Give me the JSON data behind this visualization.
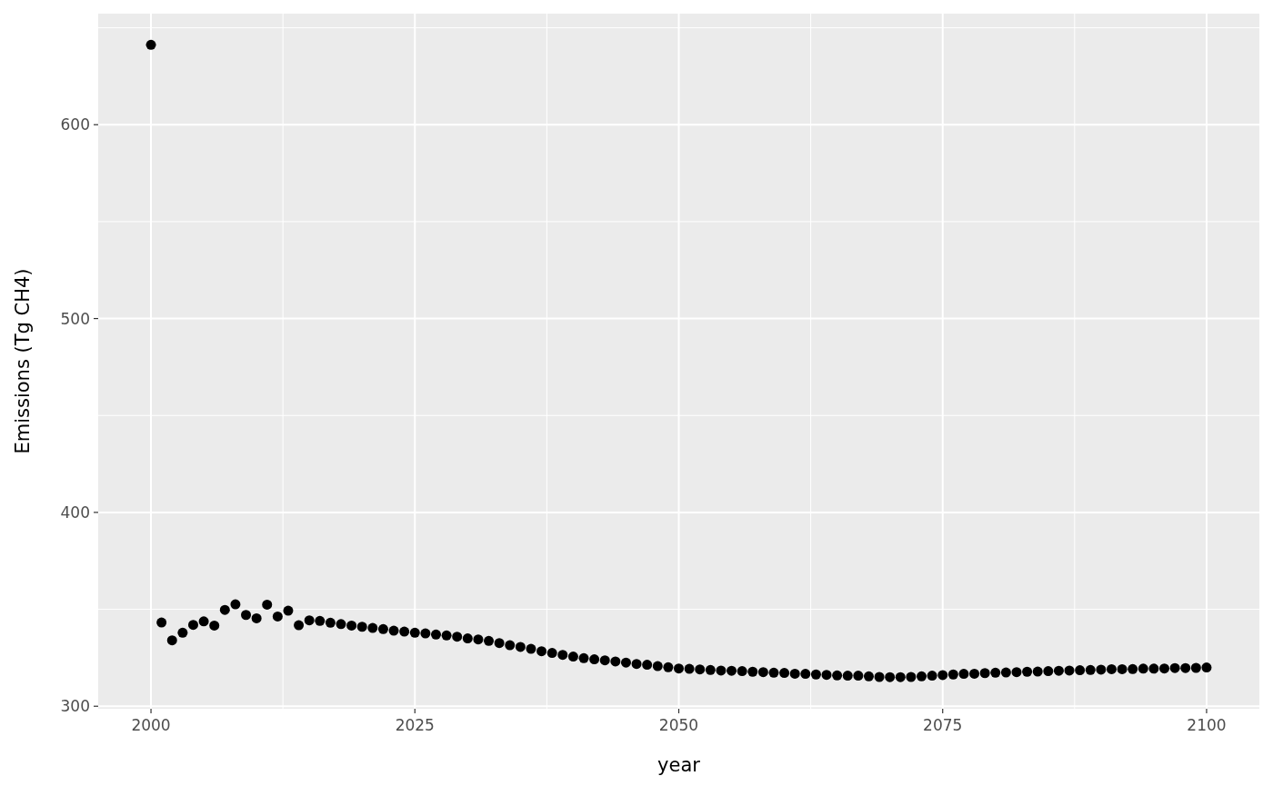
{
  "chart_data": {
    "type": "scatter",
    "xlabel": "year",
    "ylabel": "Emissions (Tg CH4)",
    "x": [
      2000,
      2001,
      2002,
      2003,
      2004,
      2005,
      2006,
      2007,
      2008,
      2009,
      2010,
      2011,
      2012,
      2013,
      2014,
      2015,
      2016,
      2017,
      2018,
      2019,
      2020,
      2021,
      2022,
      2023,
      2024,
      2025,
      2026,
      2027,
      2028,
      2029,
      2030,
      2031,
      2032,
      2033,
      2034,
      2035,
      2036,
      2037,
      2038,
      2039,
      2040,
      2041,
      2042,
      2043,
      2044,
      2045,
      2046,
      2047,
      2048,
      2049,
      2050,
      2051,
      2052,
      2053,
      2054,
      2055,
      2056,
      2057,
      2058,
      2059,
      2060,
      2061,
      2062,
      2063,
      2064,
      2065,
      2066,
      2067,
      2068,
      2069,
      2070,
      2071,
      2072,
      2073,
      2074,
      2075,
      2076,
      2077,
      2078,
      2079,
      2080,
      2081,
      2082,
      2083,
      2084,
      2085,
      2086,
      2087,
      2088,
      2089,
      2090,
      2091,
      2092,
      2093,
      2094,
      2095,
      2096,
      2097,
      2098,
      2099,
      2100
    ],
    "series": [
      {
        "color": "#000000",
        "values": [
          641.2,
          343.2,
          334.0,
          337.9,
          342.0,
          343.8,
          341.6,
          349.7,
          352.6,
          347.1,
          345.4,
          352.4,
          346.3,
          349.3,
          341.8,
          344.3,
          344.0,
          343.1,
          342.4,
          341.6,
          341.0,
          340.4,
          339.8,
          339.0,
          338.5,
          337.9,
          337.6,
          337.0,
          336.5,
          335.9,
          335.0,
          334.5,
          333.7,
          332.6,
          331.5,
          330.6,
          329.6,
          328.4,
          327.5,
          326.5,
          325.6,
          324.8,
          324.2,
          323.7,
          323.1,
          322.5,
          321.8,
          321.4,
          320.7,
          320.1,
          319.5,
          319.3,
          319.0,
          318.7,
          318.4,
          318.3,
          318.1,
          317.8,
          317.6,
          317.3,
          317.2,
          316.8,
          316.7,
          316.4,
          316.2,
          315.9,
          315.8,
          315.8,
          315.4,
          315.1,
          315.0,
          315.0,
          315.1,
          315.4,
          315.8,
          316.1,
          316.4,
          316.7,
          316.8,
          317.1,
          317.3,
          317.4,
          317.6,
          317.8,
          317.9,
          318.1,
          318.3,
          318.4,
          318.6,
          318.7,
          318.9,
          319.1,
          319.1,
          319.2,
          319.4,
          319.4,
          319.5,
          319.7,
          319.7,
          319.8,
          320.0
        ]
      }
    ],
    "xlim": [
      1995,
      2105
    ],
    "xticks": [
      2000,
      2025,
      2050,
      2075,
      2100
    ],
    "ylim": [
      298.7,
      657.3
    ],
    "yticks": [
      300,
      400,
      500,
      600
    ],
    "grid": true,
    "marker": "circle"
  }
}
